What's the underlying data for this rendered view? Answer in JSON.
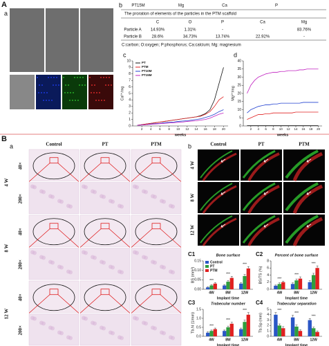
{
  "panel_labels": {
    "A": "A",
    "A_a": "a",
    "A_b": "b",
    "A_c": "c",
    "A_d": "d",
    "B": "B",
    "B_a": "a",
    "B_b": "b"
  },
  "table": {
    "header": [
      "PT15M",
      "Mg",
      "Ca",
      "P"
    ],
    "title": "The proration of elements of the particles in the PTM scaffold",
    "columns": [
      "C",
      "O",
      "P",
      "Ca",
      "Mg"
    ],
    "rows": [
      [
        "Particle A",
        "14.93%",
        "1.31%",
        "-",
        "-",
        "83.76%"
      ],
      [
        "Particle B",
        "28.6%",
        "34.73%",
        "13.74%",
        "22.92%",
        "-"
      ]
    ],
    "footnote": "C:carbon; O:oxygen; P:phosphorus; Ca:calcium; Mg: magnesium"
  },
  "histology": {
    "columns": [
      "Control",
      "PT",
      "PTM"
    ],
    "groups": [
      {
        "week": "4 W",
        "mags": [
          "40×",
          "200×"
        ]
      },
      {
        "week": "8 W",
        "mags": [
          "40×",
          "200×"
        ]
      },
      {
        "week": "12 W",
        "mags": [
          "40×",
          "200×"
        ]
      }
    ]
  },
  "fluorescence": {
    "columns": [
      "Control",
      "PT",
      "PTM"
    ],
    "rows": [
      "4 W",
      "8 W",
      "12 W"
    ]
  },
  "chart_data": [
    {
      "type": "line",
      "panel": "c",
      "x": [
        1,
        2,
        3,
        4,
        5,
        6,
        7,
        8,
        9,
        10,
        11,
        12,
        13,
        14,
        15,
        16,
        17,
        18,
        19,
        20
      ],
      "xlim": [
        0,
        21
      ],
      "xticks": [
        2,
        4,
        6,
        8,
        10,
        12,
        14,
        16,
        18,
        20
      ],
      "xlabel": "weeks",
      "ylabel": "Ca²⁺/mg",
      "ylim": [
        0,
        10
      ],
      "yticks": [
        0,
        1,
        2,
        3,
        4,
        5,
        6,
        7,
        8,
        9,
        10
      ],
      "series": [
        {
          "name": "PT",
          "color": "#111111",
          "values": [
            0.1,
            0.2,
            0.3,
            0.4,
            0.5,
            0.6,
            0.7,
            0.8,
            0.9,
            1.0,
            1.1,
            1.2,
            1.3,
            1.4,
            1.6,
            1.9,
            2.5,
            4.0,
            6.5,
            9.0
          ]
        },
        {
          "name": "PTM",
          "color": "#e02020",
          "values": [
            0.1,
            0.2,
            0.3,
            0.4,
            0.5,
            0.6,
            0.7,
            0.8,
            0.9,
            1.0,
            1.1,
            1.2,
            1.3,
            1.4,
            1.5,
            1.8,
            2.2,
            3.0,
            4.0,
            4.5
          ]
        },
        {
          "name": "PT10M",
          "color": "#2040d0",
          "values": [
            0.1,
            0.15,
            0.2,
            0.3,
            0.35,
            0.4,
            0.5,
            0.55,
            0.6,
            0.7,
            0.75,
            0.8,
            0.9,
            1.0,
            1.1,
            1.3,
            1.5,
            1.8,
            2.2,
            2.5
          ]
        },
        {
          "name": "PT15M",
          "color": "#c020c0",
          "values": [
            0.1,
            0.15,
            0.2,
            0.25,
            0.3,
            0.35,
            0.4,
            0.45,
            0.5,
            0.55,
            0.6,
            0.7,
            0.75,
            0.8,
            0.9,
            1.0,
            1.2,
            1.5,
            1.8,
            2.0
          ]
        }
      ]
    },
    {
      "type": "line",
      "panel": "d",
      "x": [
        1,
        2,
        3,
        4,
        5,
        6,
        7,
        8,
        9,
        10,
        11,
        12,
        13,
        14,
        15,
        16,
        17,
        18,
        19,
        20
      ],
      "xlim": [
        0,
        21
      ],
      "xticks": [
        2,
        4,
        6,
        8,
        10,
        12,
        14,
        16,
        18,
        20
      ],
      "xlabel": "weeks",
      "ylabel": "Mg²⁺/mg",
      "ylim": [
        0,
        40
      ],
      "yticks": [
        0,
        5,
        10,
        15,
        20,
        25,
        30,
        35,
        40
      ],
      "series": [
        {
          "color": "#111111",
          "values": [
            0.2,
            0.2,
            0.2,
            0.2,
            0.2,
            0.2,
            0.2,
            0.2,
            0.2,
            0.2,
            0.2,
            0.2,
            0.2,
            0.2,
            0.2,
            0.2,
            0.2,
            0.2,
            0.2,
            0.2
          ]
        },
        {
          "color": "#e02020",
          "values": [
            4,
            5,
            6,
            7,
            7,
            7.5,
            7.5,
            8,
            8,
            8,
            8,
            8,
            8,
            8.5,
            8.5,
            8.5,
            8.5,
            8.5,
            8.5,
            8.5
          ]
        },
        {
          "color": "#2040d0",
          "values": [
            8,
            10,
            11,
            12,
            12.5,
            13,
            13,
            13.5,
            13.5,
            14,
            14,
            14,
            14,
            14,
            14,
            14.5,
            14.5,
            14.5,
            14.5,
            14.5
          ]
        },
        {
          "color": "#c020c0",
          "values": [
            20,
            25,
            28,
            30,
            31,
            32,
            32.5,
            33,
            33,
            33.5,
            33.5,
            34,
            34,
            34,
            34.5,
            34.5,
            35,
            35,
            35,
            35
          ]
        }
      ]
    },
    {
      "type": "bar",
      "panel": "C1",
      "title": "Bone surface",
      "categories": [
        "4W",
        "8W",
        "12W"
      ],
      "xlabel": "Implant time",
      "ylabel": "BS (mm²)",
      "ylim": [
        0,
        0.15
      ],
      "yticks": [
        {
          "value": 0,
          "label": "0.00"
        },
        {
          "value": 0.05,
          "label": "0.05"
        },
        {
          "value": 0.1,
          "label": "0.10"
        },
        {
          "value": 0.15,
          "label": "0.15"
        }
      ],
      "series": [
        {
          "name": "Control",
          "color": "#2a56c6",
          "values": [
            0.01,
            0.02,
            0.03
          ],
          "errors": [
            0.003,
            0.004,
            0.005
          ]
        },
        {
          "name": "PT",
          "color": "#2e9e3e",
          "values": [
            0.02,
            0.04,
            0.07
          ],
          "errors": [
            0.004,
            0.006,
            0.008
          ]
        },
        {
          "name": "PTM",
          "color": "#e02020",
          "values": [
            0.03,
            0.06,
            0.11
          ],
          "errors": [
            0.005,
            0.008,
            0.01
          ]
        }
      ],
      "annotations": [
        "***",
        "***",
        "***"
      ]
    },
    {
      "type": "bar",
      "panel": "C2",
      "title": "Percent of bone surface",
      "categories": [
        "4W",
        "8W",
        "12W"
      ],
      "xlabel": "Implant time",
      "ylabel": "BS/TS (%)",
      "ylim": [
        0,
        8
      ],
      "yticks": [
        0,
        2,
        4,
        6,
        8
      ],
      "series": [
        {
          "color": "#2a56c6",
          "values": [
            1,
            1.5,
            2
          ],
          "errors": [
            0.2,
            0.3,
            0.4
          ]
        },
        {
          "color": "#2e9e3e",
          "values": [
            1.5,
            2.5,
            4
          ],
          "errors": [
            0.3,
            0.4,
            0.5
          ]
        },
        {
          "color": "#e02020",
          "values": [
            2,
            3,
            6
          ],
          "errors": [
            0.3,
            0.5,
            0.6
          ]
        }
      ],
      "annotations": [
        "***",
        "***",
        "***"
      ]
    },
    {
      "type": "bar",
      "panel": "C3",
      "title": "Trabecular number",
      "categories": [
        "4W",
        "8W",
        "12W"
      ],
      "xlabel": "Implant time",
      "ylabel": "Tb.N (1/mm)",
      "ylim": [
        0,
        1.5
      ],
      "yticks": [
        {
          "value": 0,
          "label": "0.0"
        },
        {
          "value": 0.5,
          "label": "0.5"
        },
        {
          "value": 1,
          "label": "1.0"
        },
        {
          "value": 1.5,
          "label": "1.5"
        }
      ],
      "series": [
        {
          "color": "#2a56c6",
          "values": [
            0.2,
            0.3,
            0.4
          ],
          "errors": [
            0.05,
            0.05,
            0.06
          ]
        },
        {
          "color": "#2e9e3e",
          "values": [
            0.3,
            0.5,
            0.8
          ],
          "errors": [
            0.05,
            0.07,
            0.1
          ]
        },
        {
          "color": "#e02020",
          "values": [
            0.4,
            0.7,
            1.2
          ],
          "errors": [
            0.06,
            0.08,
            0.12
          ]
        }
      ],
      "annotations": [
        "***",
        "***",
        "***"
      ]
    },
    {
      "type": "bar",
      "panel": "C4",
      "title": "Trabecular separation",
      "categories": [
        "4W",
        "8W",
        "12W"
      ],
      "xlabel": "Implant time",
      "ylabel": "Tb.Sp (mm)",
      "ylim": [
        0,
        5
      ],
      "yticks": [
        0,
        1,
        2,
        3,
        4,
        5
      ],
      "series": [
        {
          "color": "#2a56c6",
          "values": [
            4,
            3.5,
            3
          ],
          "errors": [
            0.4,
            0.4,
            0.3
          ]
        },
        {
          "color": "#2e9e3e",
          "values": [
            2,
            1.8,
            1.5
          ],
          "errors": [
            0.3,
            0.3,
            0.2
          ]
        },
        {
          "color": "#e02020",
          "values": [
            1.5,
            1,
            0.8
          ],
          "errors": [
            0.3,
            0.2,
            0.2
          ]
        }
      ],
      "annotations": [
        "***",
        "***",
        "***"
      ]
    }
  ]
}
